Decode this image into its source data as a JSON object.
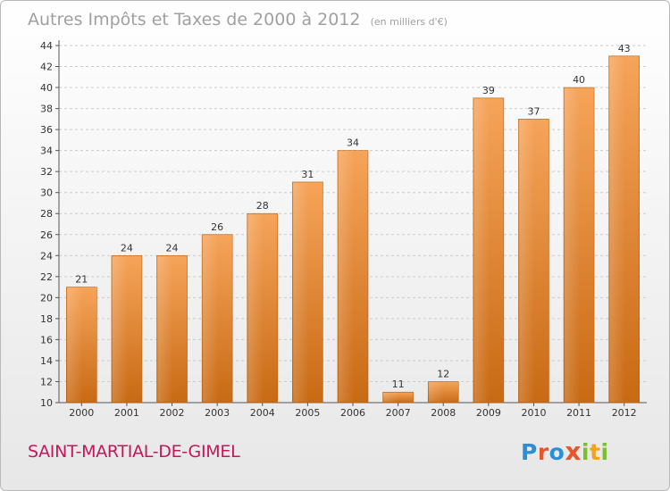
{
  "title": {
    "main": "Autres Impôts et Taxes de 2000 à 2012",
    "sub": "(en milliers d'€)"
  },
  "commune": "SAINT-MARTIAL-DE-GIMEL",
  "logo": {
    "letters": [
      "P",
      "r",
      "o",
      "x",
      "i",
      "t",
      "i"
    ]
  },
  "colors": {
    "bar_top": "#f6a45a",
    "bar_bottom": "#c86a14",
    "grid": "#cccccc",
    "commune_text": "#c2185b"
  },
  "chart_data": {
    "type": "bar",
    "categories": [
      "2000",
      "2001",
      "2002",
      "2003",
      "2004",
      "2005",
      "2006",
      "2007",
      "2008",
      "2009",
      "2010",
      "2011",
      "2012"
    ],
    "values": [
      21,
      24,
      24,
      26,
      28,
      31,
      34,
      11,
      12,
      39,
      37,
      40,
      43
    ],
    "data_labels": [
      "21",
      "24",
      "24",
      "26",
      "28",
      "31",
      "34",
      "11",
      "12",
      "39",
      "37",
      "40",
      "43"
    ],
    "yticks": [
      "10",
      "12",
      "14",
      "16",
      "18",
      "20",
      "22",
      "24",
      "26",
      "28",
      "30",
      "32",
      "34",
      "36",
      "38",
      "40",
      "42",
      "44"
    ],
    "ylim": [
      10,
      44
    ],
    "grid": "horizontal-dashed"
  }
}
